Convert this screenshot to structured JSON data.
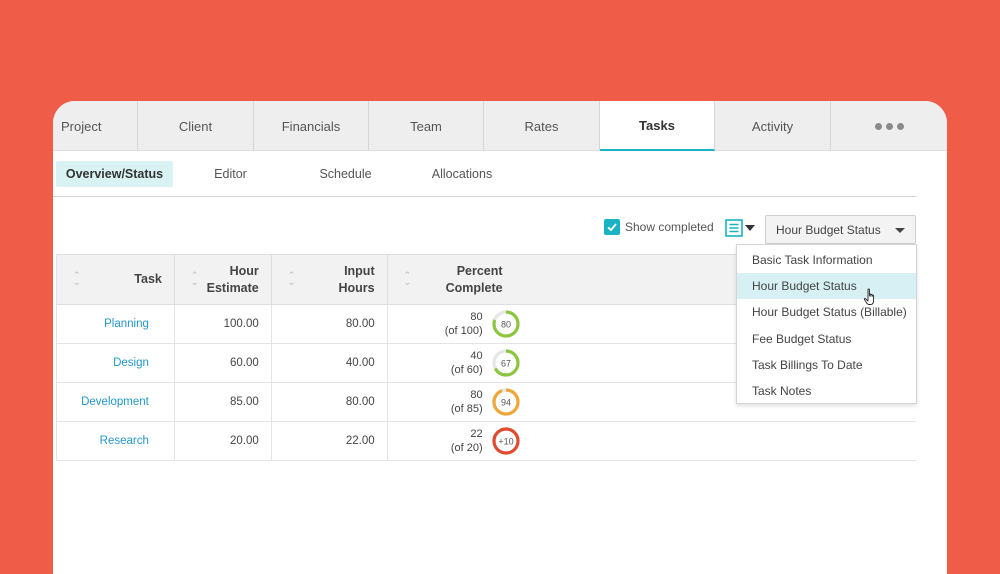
{
  "main_tabs": [
    {
      "label": "Project"
    },
    {
      "label": "Client"
    },
    {
      "label": "Financials"
    },
    {
      "label": "Team"
    },
    {
      "label": "Rates"
    },
    {
      "label": "Tasks",
      "active": true
    },
    {
      "label": "Activity"
    }
  ],
  "more_icon": "ellipsis-icon",
  "sub_tabs": [
    {
      "label": "Overview/Status",
      "active": true
    },
    {
      "label": "Editor"
    },
    {
      "label": "Schedule"
    },
    {
      "label": "Allocations"
    }
  ],
  "toolbar": {
    "show_completed_label": "Show completed",
    "show_completed_checked": true,
    "list_icon": "list-view-icon",
    "view_select_value": "Hour Budget Status"
  },
  "table": {
    "headers": {
      "task": "Task",
      "hour_estimate_line1": "Hour",
      "hour_estimate_line2": "Estimate",
      "input_hours_line1": "Input",
      "input_hours_line2": "Hours",
      "percent_line1": "Percent",
      "percent_line2": "Complete"
    },
    "rows": [
      {
        "task": "Planning",
        "estimate": "100.00",
        "input": "80.00",
        "pc_value": "80",
        "pc_of": "(of 100)",
        "ring_label": "80",
        "ring_pct": 80,
        "ring_color": "#8cc63f"
      },
      {
        "task": "Design",
        "estimate": "60.00",
        "input": "40.00",
        "pc_value": "40",
        "pc_of": "(of 60)",
        "ring_label": "67",
        "ring_pct": 67,
        "ring_color": "#8cc63f"
      },
      {
        "task": "Development",
        "estimate": "85.00",
        "input": "80.00",
        "pc_value": "80",
        "pc_of": "(of 85)",
        "ring_label": "94",
        "ring_pct": 94,
        "ring_color": "#f0a73a"
      },
      {
        "task": "Research",
        "estimate": "20.00",
        "input": "22.00",
        "pc_value": "22",
        "pc_of": "(of 20)",
        "ring_label": "+10",
        "ring_pct": 100,
        "ring_color": "#e04b2f"
      }
    ]
  },
  "view_dropdown": {
    "items": [
      {
        "label": "Basic Task Information"
      },
      {
        "label": "Hour Budget Status",
        "hovered": true
      },
      {
        "label": "Hour Budget Status (Billable)"
      },
      {
        "label": "Fee Budget Status"
      },
      {
        "label": "Task Billings To Date"
      },
      {
        "label": "Task Notes"
      }
    ]
  },
  "colors": {
    "background": "#ef5c48",
    "accent": "#19b3c4",
    "link": "#2497c9",
    "ring_track": "#e6e6e6"
  }
}
